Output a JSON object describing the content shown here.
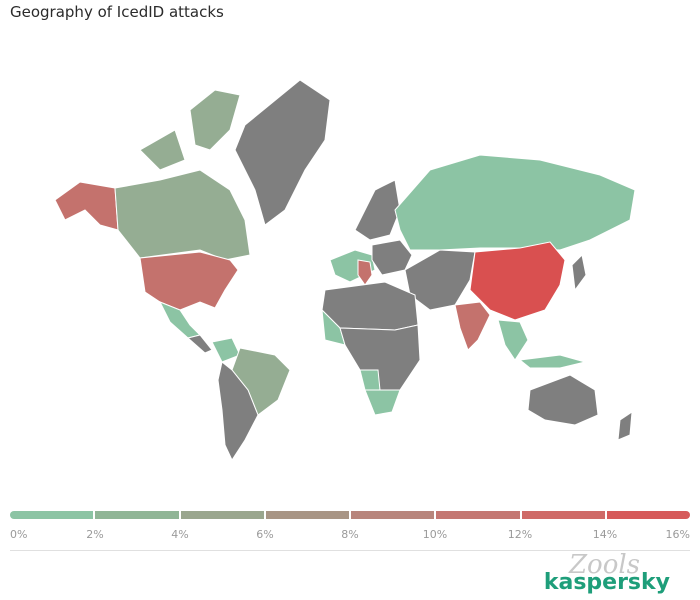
{
  "title": "Geography of IcedID attacks",
  "legend": {
    "colors": [
      "#8cc4a4",
      "#90b596",
      "#9aa68e",
      "#a89585",
      "#b8857c",
      "#c47772",
      "#cf6a67",
      "#d65a5a"
    ],
    "ticks": [
      "0%",
      "2%",
      "4%",
      "6%",
      "8%",
      "10%",
      "12%",
      "14%",
      "16%"
    ]
  },
  "colors": {
    "no_data": "#7f7f7f",
    "low": "#8cc4a4",
    "mid_low": "#95ad93",
    "mid": "#c4726d",
    "high": "#d95050",
    "border": "#ffffff"
  },
  "brand": "kaspersky",
  "watermark": "Zools",
  "chart_data": {
    "type": "choropleth",
    "title": "Geography of IcedID attacks",
    "value_unit": "%",
    "scale_range": [
      0,
      16
    ],
    "regions": [
      {
        "name": "China",
        "level": "high"
      },
      {
        "name": "USA",
        "level": "mid"
      },
      {
        "name": "India",
        "level": "mid"
      },
      {
        "name": "Italy",
        "level": "mid"
      },
      {
        "name": "Canada",
        "level": "mid_low"
      },
      {
        "name": "Brazil",
        "level": "mid_low"
      },
      {
        "name": "Russia",
        "level": "low"
      },
      {
        "name": "Mexico",
        "level": "low"
      },
      {
        "name": "South Africa",
        "level": "low"
      }
    ]
  }
}
